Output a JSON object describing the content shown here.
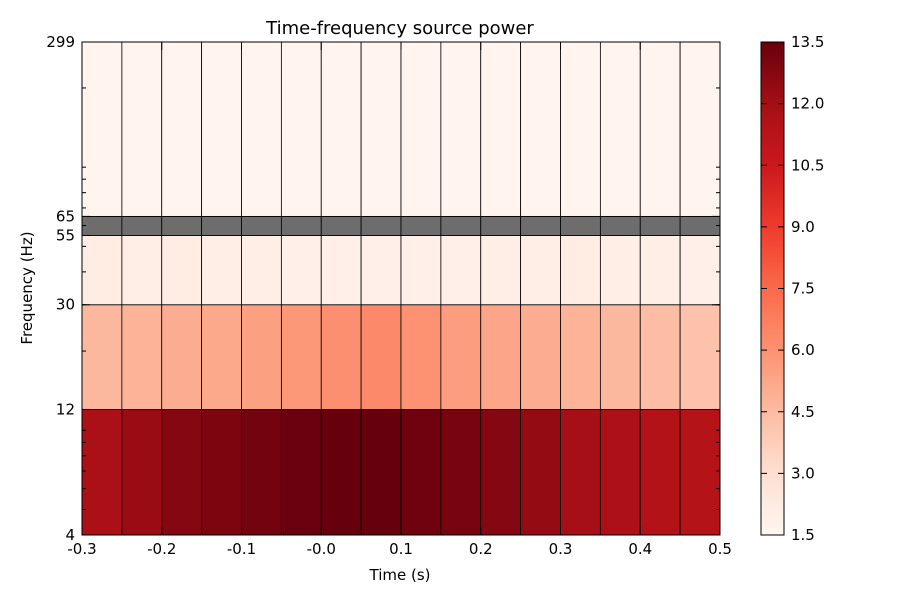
{
  "chart_data": {
    "type": "heatmap",
    "title": "Time-frequency source power",
    "xlabel": "Time (s)",
    "ylabel": "Frequency (Hz)",
    "x_edges": [
      -0.3,
      -0.25,
      -0.2,
      -0.15,
      -0.1,
      -0.05,
      0.0,
      0.05,
      0.1,
      0.15,
      0.2,
      0.25,
      0.3,
      0.35,
      0.4,
      0.45,
      0.5
    ],
    "x_ticks": [
      -0.3,
      -0.2,
      -0.1,
      -0.0,
      0.1,
      0.2,
      0.3,
      0.4,
      0.5
    ],
    "x_tick_labels": [
      "-0.3",
      "-0.2",
      "-0.1",
      "-0.0",
      "0.1",
      "0.2",
      "0.3",
      "0.4",
      "0.5"
    ],
    "y_scale": "log",
    "y_ticks": [
      4,
      12,
      30,
      55,
      65,
      299
    ],
    "y_tick_labels": [
      "4",
      "12",
      "30",
      "55",
      "65",
      "299"
    ],
    "frequency_bands": [
      {
        "low": 4,
        "high": 12,
        "values": [
          11.8,
          12.3,
          12.8,
          13.0,
          13.2,
          13.4,
          13.5,
          13.5,
          13.3,
          13.1,
          12.8,
          12.4,
          12.0,
          11.7,
          11.5,
          11.4
        ]
      },
      {
        "low": 12,
        "high": 30,
        "values": [
          4.6,
          4.8,
          5.0,
          5.2,
          5.5,
          5.8,
          6.1,
          6.3,
          6.0,
          5.6,
          5.3,
          5.0,
          4.8,
          4.6,
          4.4,
          4.2
        ]
      },
      {
        "low": 30,
        "high": 55,
        "values": [
          2.1,
          2.0,
          2.1,
          2.0,
          2.0,
          1.9,
          1.9,
          1.9,
          1.9,
          1.9,
          2.0,
          2.0,
          2.1,
          2.0,
          2.0,
          1.9
        ]
      },
      {
        "low": 55,
        "high": 65,
        "values": null,
        "masked": true
      },
      {
        "low": 65,
        "high": 299,
        "values": [
          1.6,
          1.6,
          1.6,
          1.6,
          1.6,
          1.6,
          1.6,
          1.6,
          1.6,
          1.6,
          1.6,
          1.6,
          1.6,
          1.6,
          1.6,
          1.6
        ]
      }
    ],
    "masked_color": "#6d6d6d",
    "colormap": "Reds",
    "colorbar": {
      "vmin": 1.5,
      "vmax": 13.5,
      "ticks": [
        1.5,
        3.0,
        4.5,
        6.0,
        7.5,
        9.0,
        10.5,
        12.0,
        13.5
      ],
      "tick_labels": [
        "1.5",
        "3.0",
        "4.5",
        "6.0",
        "7.5",
        "9.0",
        "10.5",
        "12.0",
        "13.5"
      ]
    },
    "grid": false
  }
}
